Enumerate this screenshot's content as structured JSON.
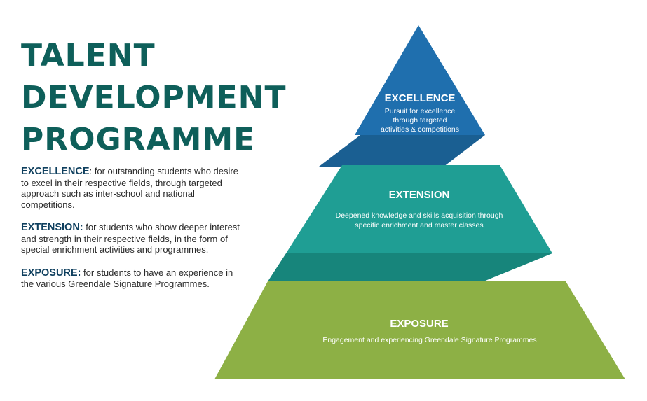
{
  "title": {
    "lines": [
      "TALENT",
      "DEVELOPMENT",
      "PROGRAMME"
    ]
  },
  "descriptions": [
    {
      "term": "EXCELLENCE",
      "text": ": for outstanding students who desire to excel in their respective fields, through targeted approach such as inter-school and national competitions."
    },
    {
      "term": "EXTENSION:",
      "text": " for students who show deeper interest and strength in their respective fields, in the form of special enrichment activities and programmes."
    },
    {
      "term": "EXPOSURE:",
      "text": " for students to have an experience in the various Greendale Signature Programmes."
    }
  ],
  "pyramid": {
    "colors": {
      "excellence": "#1f6fae",
      "excellence_connector": "#1a5f92",
      "extension": "#1f9e94",
      "extension_connector": "#17857b",
      "exposure": "#8db045"
    },
    "tiers": {
      "excellence": {
        "title": "EXCELLENCE",
        "lines": [
          "Pursuit for excellence",
          "through targeted",
          "activities & competitions"
        ]
      },
      "extension": {
        "title": "EXTENSION",
        "lines": [
          "Deepened knowledge and skills acquisition through",
          "specific enrichment and master classes"
        ]
      },
      "exposure": {
        "title": "EXPOSURE",
        "lines": [
          "Engagement and experiencing Greendale Signature Programmes"
        ]
      }
    }
  }
}
